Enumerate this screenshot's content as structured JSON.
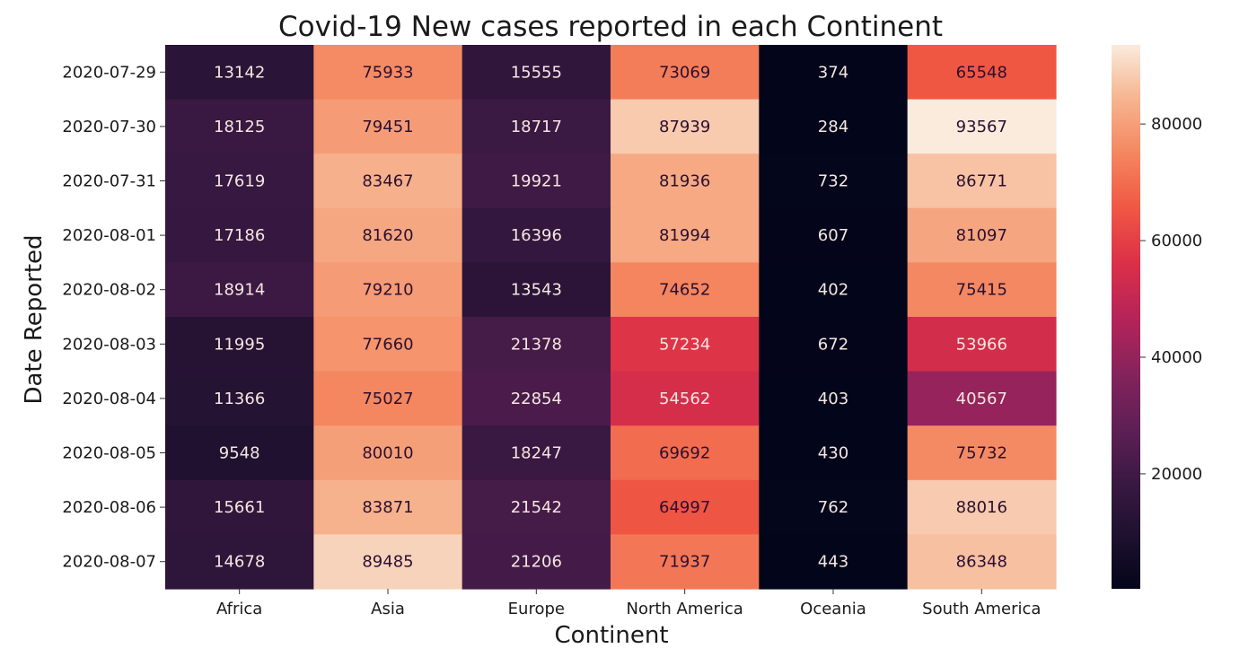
{
  "chart_data": {
    "type": "heatmap",
    "title": "Covid-19 New cases reported in each Continent",
    "xlabel": "Continent",
    "ylabel": "Date Reported",
    "columns": [
      "Africa",
      "Asia",
      "Europe",
      "North America",
      "Oceania",
      "South America"
    ],
    "rows": [
      "2020-07-29",
      "2020-07-30",
      "2020-07-31",
      "2020-08-01",
      "2020-08-02",
      "2020-08-03",
      "2020-08-04",
      "2020-08-05",
      "2020-08-06",
      "2020-08-07"
    ],
    "values": [
      [
        13142,
        75933,
        15555,
        73069,
        374,
        65548
      ],
      [
        18125,
        79451,
        18717,
        87939,
        284,
        93567
      ],
      [
        17619,
        83467,
        19921,
        81936,
        732,
        86771
      ],
      [
        17186,
        81620,
        16396,
        81994,
        607,
        81097
      ],
      [
        18914,
        79210,
        13543,
        74652,
        402,
        75415
      ],
      [
        11995,
        77660,
        21378,
        57234,
        672,
        53966
      ],
      [
        11366,
        75027,
        22854,
        54562,
        403,
        40567
      ],
      [
        9548,
        80010,
        18247,
        69692,
        430,
        75732
      ],
      [
        15661,
        83871,
        21542,
        64997,
        762,
        88016
      ],
      [
        14678,
        89485,
        21206,
        71937,
        443,
        86348
      ]
    ],
    "colorbar": {
      "min": 284,
      "max": 93567,
      "ticks": [
        20000,
        40000,
        60000,
        80000
      ],
      "colormap": "rocket"
    }
  }
}
